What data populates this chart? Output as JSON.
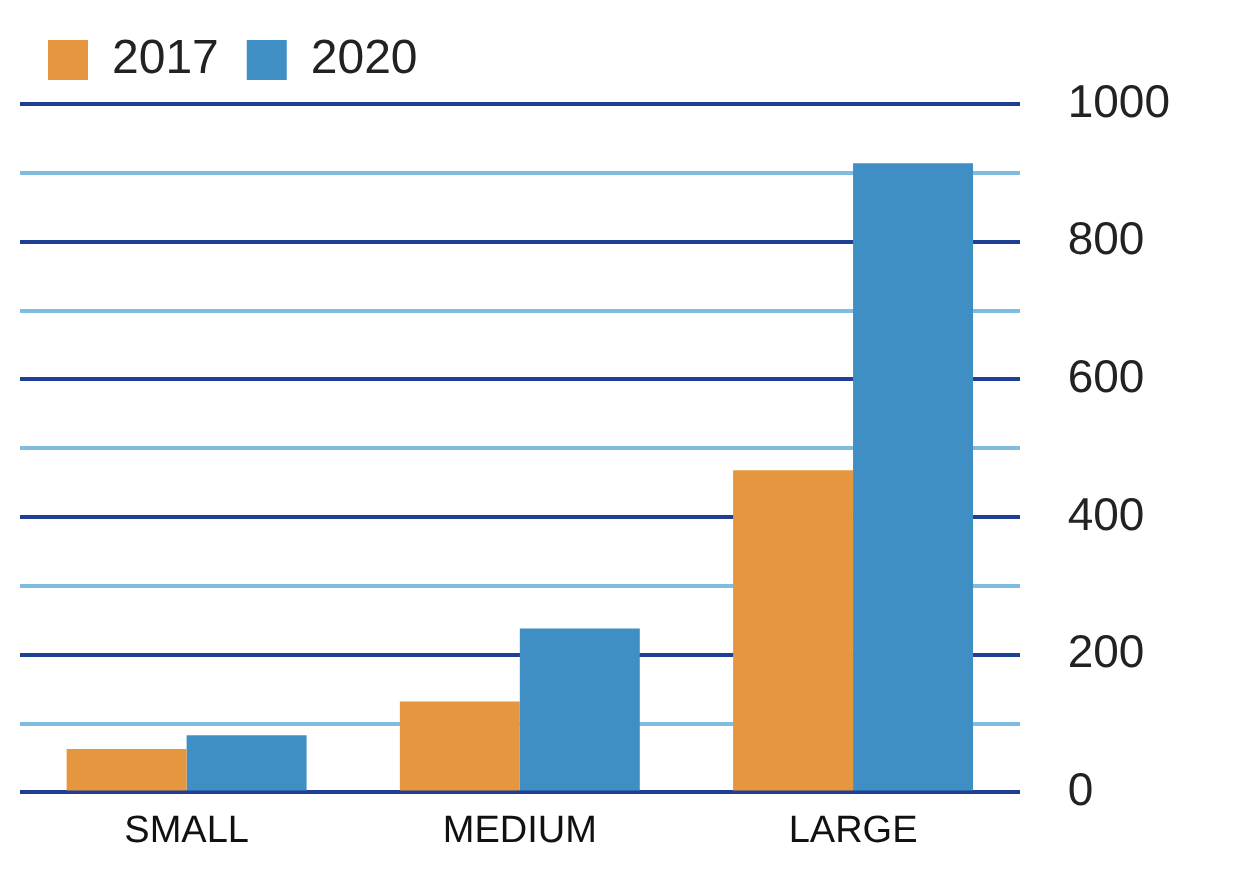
{
  "chart_data": {
    "type": "bar",
    "categories": [
      "SMALL",
      "MEDIUM",
      "LARGE"
    ],
    "series": [
      {
        "name": "2017",
        "color": "#e6963f",
        "values": [
          63,
          132,
          468
        ]
      },
      {
        "name": "2020",
        "color": "#3f8fc4",
        "values": [
          83,
          238,
          914
        ]
      }
    ],
    "ylim": [
      0,
      1000
    ],
    "yticks": [
      0,
      {
        "value": 100,
        "label": null
      },
      200,
      {
        "value": 300,
        "label": null
      },
      400,
      {
        "value": 500,
        "label": null
      },
      600,
      {
        "value": 700,
        "label": null
      },
      800,
      {
        "value": 900,
        "label": null
      },
      1000
    ],
    "grid": "y",
    "legend": "top left"
  }
}
